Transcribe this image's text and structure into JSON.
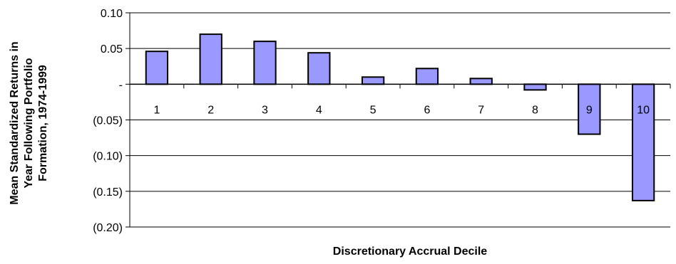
{
  "chart_data": {
    "type": "bar",
    "title": "",
    "xlabel": "Discretionary Accrual Decile",
    "ylabel_lines": [
      "Mean Standardized Returns in",
      "Year Following Portfolio",
      "Formation, 1974-1999"
    ],
    "categories": [
      "1",
      "2",
      "3",
      "4",
      "5",
      "6",
      "7",
      "8",
      "9",
      "10"
    ],
    "values": [
      0.046,
      0.07,
      0.06,
      0.044,
      0.01,
      0.022,
      0.008,
      -0.008,
      -0.07,
      -0.163
    ],
    "ylim": [
      -0.2,
      0.1
    ],
    "yticks": [
      {
        "value": 0.1,
        "label": "0.10"
      },
      {
        "value": 0.05,
        "label": "0.05"
      },
      {
        "value": 0,
        "label": "-"
      },
      {
        "value": -0.05,
        "label": "(0.05)"
      },
      {
        "value": -0.1,
        "label": "(0.10)"
      },
      {
        "value": -0.15,
        "label": "(0.15)"
      },
      {
        "value": -0.2,
        "label": "(0.20)"
      }
    ],
    "grid": true,
    "bar_color": "#9999FF",
    "bar_edge_color": "#000000",
    "grid_color": "#000000"
  }
}
